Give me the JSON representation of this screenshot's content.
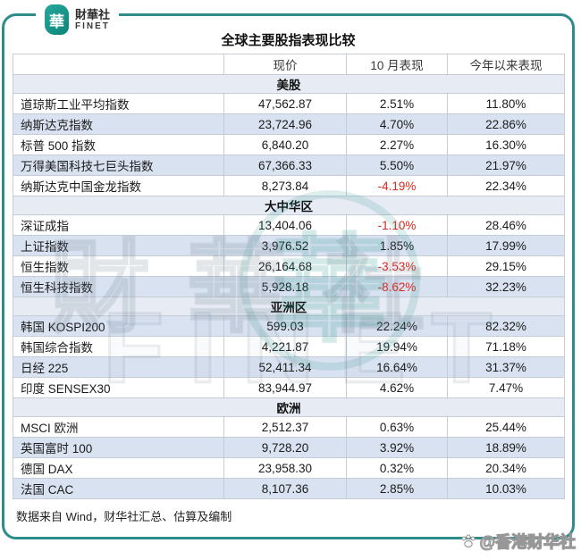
{
  "brand": {
    "logo_char": "華",
    "name_cn": "財華社",
    "name_en": "FINET"
  },
  "page": {
    "title": "全球主要股指表现比较",
    "source_note": "数据来自 Wind，财华社汇总、估算及编制"
  },
  "watermark": {
    "bottom_right": "@香港财华社",
    "center_cn": "財華社",
    "center_en": "FINET",
    "center_logo_char": "華"
  },
  "colors": {
    "accent_teal": "#2e8d8b",
    "logo_teal": "#0d8578",
    "row_band": "#d9e2f0",
    "section_bg": "#e6ebf4",
    "negative": "#e0251b"
  },
  "chart_data": {
    "type": "table",
    "title": "全球主要股指表现比较",
    "columns": [
      "",
      "现价",
      "10 月表现",
      "今年以来表现"
    ],
    "sections": [
      {
        "name": "美股",
        "rows": [
          {
            "label": "道琼斯工业平均指数",
            "price": "47,562.87",
            "oct": "2.51%",
            "ytd": "11.80%",
            "shaded": false
          },
          {
            "label": "纳斯达克指数",
            "price": "23,724.96",
            "oct": "4.70%",
            "ytd": "22.86%",
            "shaded": true
          },
          {
            "label": "标普 500 指数",
            "price": "6,840.20",
            "oct": "2.27%",
            "ytd": "16.30%",
            "shaded": false
          },
          {
            "label": "万得美国科技七巨头指数",
            "price": "67,366.33",
            "oct": "5.50%",
            "ytd": "21.97%",
            "shaded": true
          },
          {
            "label": "纳斯达克中国金龙指数",
            "price": "8,273.84",
            "oct": "-4.19%",
            "ytd": "22.34%",
            "shaded": false
          }
        ]
      },
      {
        "name": "大中华区",
        "rows": [
          {
            "label": "深证成指",
            "price": "13,404.06",
            "oct": "-1.10%",
            "ytd": "28.46%",
            "shaded": false
          },
          {
            "label": "上证指数",
            "price": "3,976.52",
            "oct": "1.85%",
            "ytd": "17.99%",
            "shaded": true
          },
          {
            "label": "恒生指数",
            "price": "26,164.68",
            "oct": "-3.53%",
            "ytd": "29.15%",
            "shaded": false
          },
          {
            "label": "恒生科技指数",
            "price": "5,928.18",
            "oct": "-8.62%",
            "ytd": "32.23%",
            "shaded": true
          }
        ]
      },
      {
        "name": "亚洲区",
        "rows": [
          {
            "label": "韩国 KOSPI200",
            "price": "599.03",
            "oct": "22.24%",
            "ytd": "82.32%",
            "shaded": true
          },
          {
            "label": "韩国综合指数",
            "price": "4,221.87",
            "oct": "19.94%",
            "ytd": "71.18%",
            "shaded": false
          },
          {
            "label": "日经 225",
            "price": "52,411.34",
            "oct": "16.64%",
            "ytd": "31.37%",
            "shaded": true
          },
          {
            "label": "印度 SENSEX30",
            "price": "83,944.97",
            "oct": "4.62%",
            "ytd": "7.47%",
            "shaded": false
          }
        ]
      },
      {
        "name": "欧洲",
        "rows": [
          {
            "label": "MSCI 欧洲",
            "price": "2,512.37",
            "oct": "0.63%",
            "ytd": "25.44%",
            "shaded": false
          },
          {
            "label": "英国富时 100",
            "price": "9,728.20",
            "oct": "3.92%",
            "ytd": "18.89%",
            "shaded": true
          },
          {
            "label": "德国 DAX",
            "price": "23,958.30",
            "oct": "0.32%",
            "ytd": "20.34%",
            "shaded": false
          },
          {
            "label": "法国 CAC",
            "price": "8,107.36",
            "oct": "2.85%",
            "ytd": "10.03%",
            "shaded": true
          }
        ]
      }
    ]
  }
}
